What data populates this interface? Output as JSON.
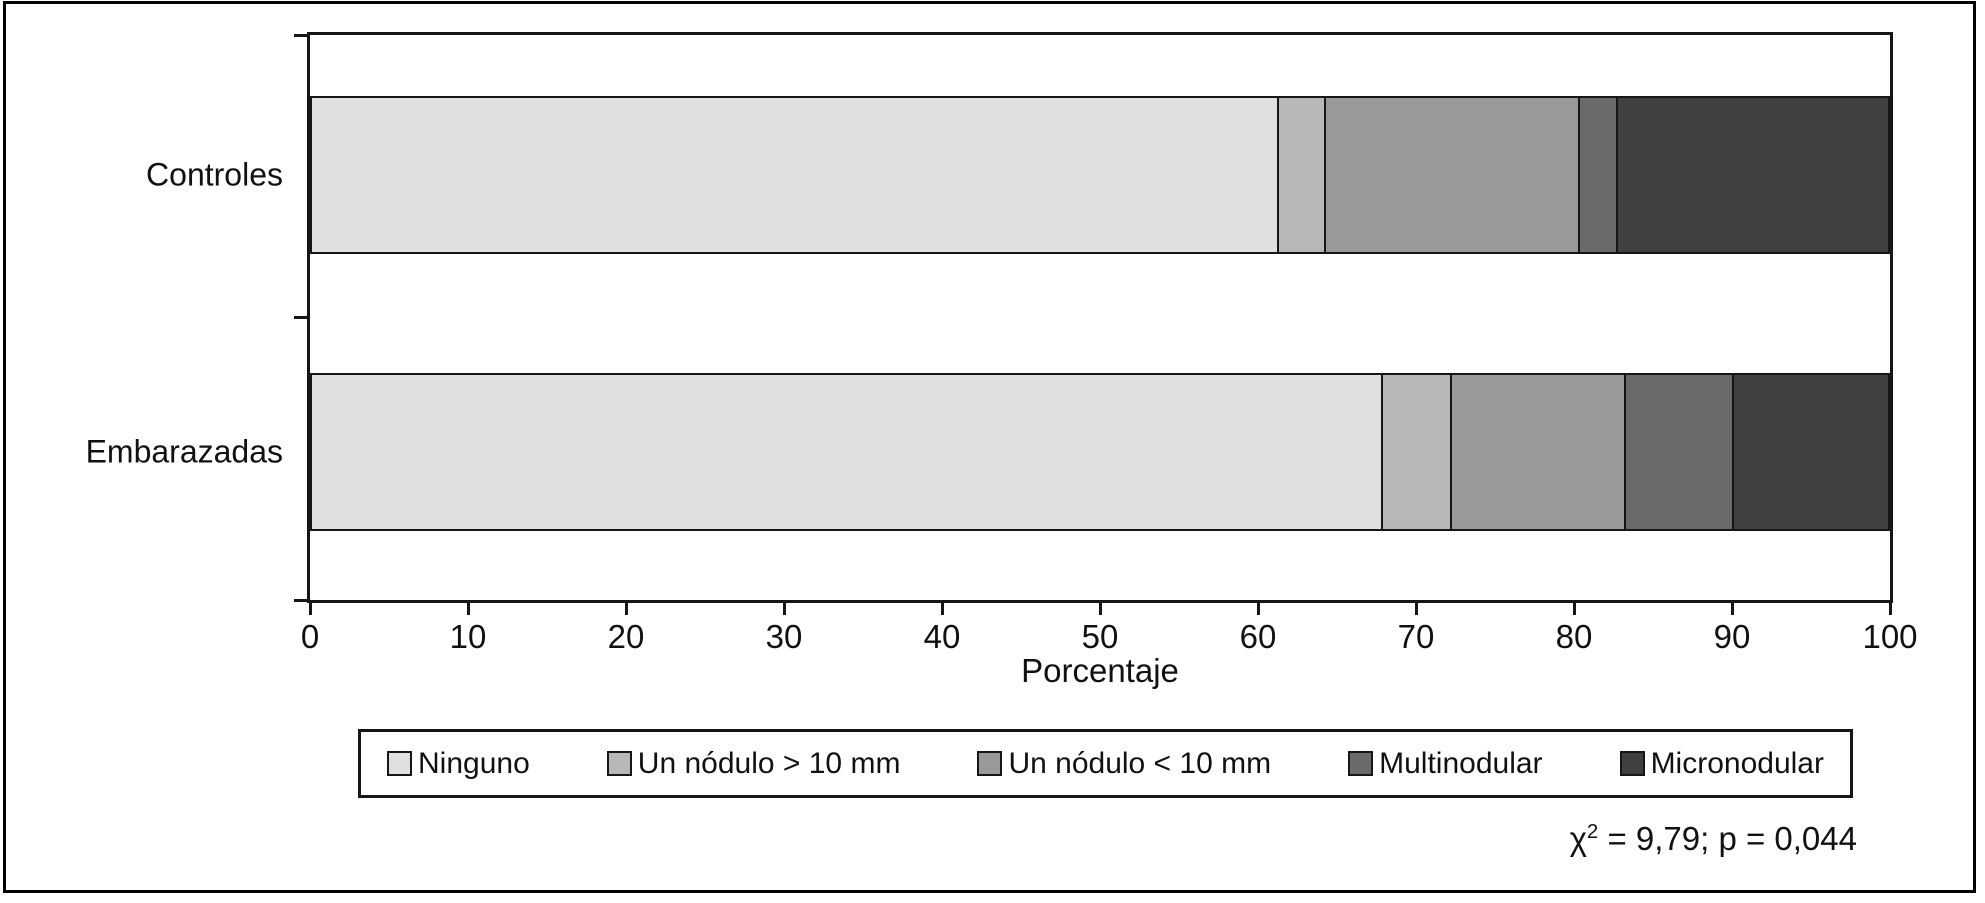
{
  "figure": {
    "background": "#ffffff",
    "border_color": "#000000"
  },
  "chart_data": {
    "type": "bar",
    "orientation": "horizontal",
    "stacked": true,
    "categories": [
      "Controles",
      "Embarazadas"
    ],
    "series": [
      {
        "name": "Ninguno",
        "color": "#e0e0e0",
        "values": [
          61.3,
          67.9
        ]
      },
      {
        "name": "Un nódulo > 10 mm",
        "color": "#b7b7b7",
        "values": [
          3.0,
          4.4
        ]
      },
      {
        "name": "Un nódulo < 10 mm",
        "color": "#999999",
        "values": [
          16.1,
          11.0
        ]
      },
      {
        "name": "Multinodular",
        "color": "#6a6a6a",
        "values": [
          2.4,
          6.8
        ]
      },
      {
        "name": "Micronodular",
        "color": "#404040",
        "values": [
          17.2,
          9.9
        ]
      }
    ],
    "xlabel": "Porcentaje",
    "ylabel": "",
    "xlim": [
      0,
      100
    ],
    "x_ticks": [
      0,
      10,
      20,
      30,
      40,
      50,
      60,
      70,
      80,
      90,
      100
    ],
    "grid": false,
    "legend_position": "bottom",
    "annotation": {
      "symbol": "χ",
      "sup": "2",
      "rest": " = 9,79; p = 0,044"
    }
  }
}
